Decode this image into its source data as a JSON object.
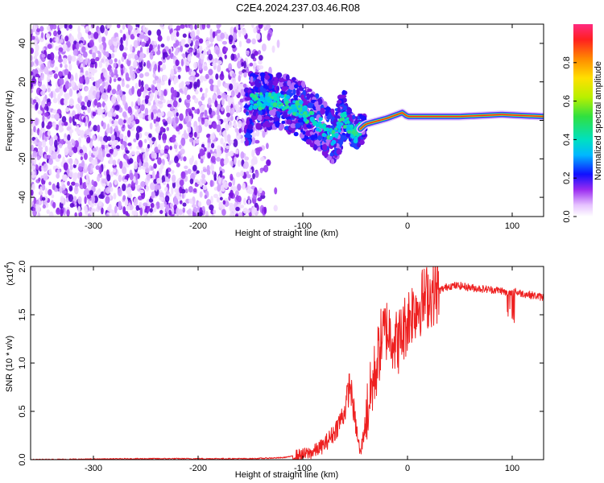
{
  "title": "C2E4.2024.237.03.46.R08",
  "chart_data": [
    {
      "type": "heatmap",
      "xlabel": "Height of straight line (km)",
      "ylabel": "Frequency (Hz)",
      "xlim": [
        -360,
        130
      ],
      "ylim": [
        -50,
        50
      ],
      "xticks": [
        -300,
        -200,
        -100,
        0,
        100
      ],
      "yticks": [
        -40,
        -20,
        0,
        20,
        40
      ],
      "colorbar": {
        "label": "Normalized spectral amplitude",
        "range": [
          0,
          1
        ],
        "ticks": [
          0.0,
          0.2,
          0.4,
          0.6,
          0.8
        ],
        "tick_labels": [
          "0.0",
          "0.2",
          "0.4",
          "0.6",
          "0.8"
        ]
      },
      "features": {
        "noise_region_x": [
          -360,
          -130
        ],
        "signal_ridge": [
          {
            "x": -150,
            "y": 10
          },
          {
            "x": -120,
            "y": 10
          },
          {
            "x": -100,
            "y": 5
          },
          {
            "x": -85,
            "y": -2
          },
          {
            "x": -70,
            "y": -10
          },
          {
            "x": -62,
            "y": 2
          },
          {
            "x": -50,
            "y": -7
          },
          {
            "x": -40,
            "y": -2
          },
          {
            "x": -20,
            "y": 1
          },
          {
            "x": -5,
            "y": 4
          },
          {
            "x": 0,
            "y": 2
          },
          {
            "x": 50,
            "y": 2
          },
          {
            "x": 90,
            "y": 3
          },
          {
            "x": 130,
            "y": 2
          }
        ]
      }
    },
    {
      "type": "line",
      "xlabel": "Height of straight line (km)",
      "ylabel": "SNR (10 * v/v)",
      "y_multiplier_label": "(x10",
      "y_multiplier_exp": "4",
      "y_multiplier_close": ")",
      "xlim": [
        -360,
        130
      ],
      "ylim": [
        0,
        2
      ],
      "xticks": [
        -300,
        -200,
        -100,
        0,
        100
      ],
      "yticks": [
        0.0,
        0.5,
        1.0,
        1.5,
        2.0
      ],
      "ytick_labels": [
        "0.0",
        "0.5",
        "1.0",
        "1.5",
        "2.0"
      ],
      "series": [
        {
          "color": "#ee2020",
          "x": [
            -360,
            -250,
            -150,
            -120,
            -100,
            -90,
            -80,
            -70,
            -60,
            -55,
            -50,
            -45,
            -40,
            -35,
            -30,
            -25,
            -20,
            -15,
            -10,
            -5,
            0,
            5,
            10,
            15,
            20,
            30,
            40,
            50,
            60,
            70,
            80,
            90,
            95,
            100,
            105,
            110,
            120,
            130
          ],
          "y": [
            0.0,
            0.01,
            0.01,
            0.02,
            0.05,
            0.08,
            0.15,
            0.28,
            0.5,
            0.8,
            0.4,
            0.05,
            0.4,
            0.7,
            0.95,
            1.25,
            1.35,
            1.3,
            1.2,
            1.3,
            1.45,
            1.55,
            1.6,
            1.65,
            1.7,
            1.75,
            1.8,
            1.8,
            1.78,
            1.77,
            1.76,
            1.75,
            1.72,
            1.75,
            1.73,
            1.72,
            1.7,
            1.68
          ]
        }
      ]
    }
  ]
}
